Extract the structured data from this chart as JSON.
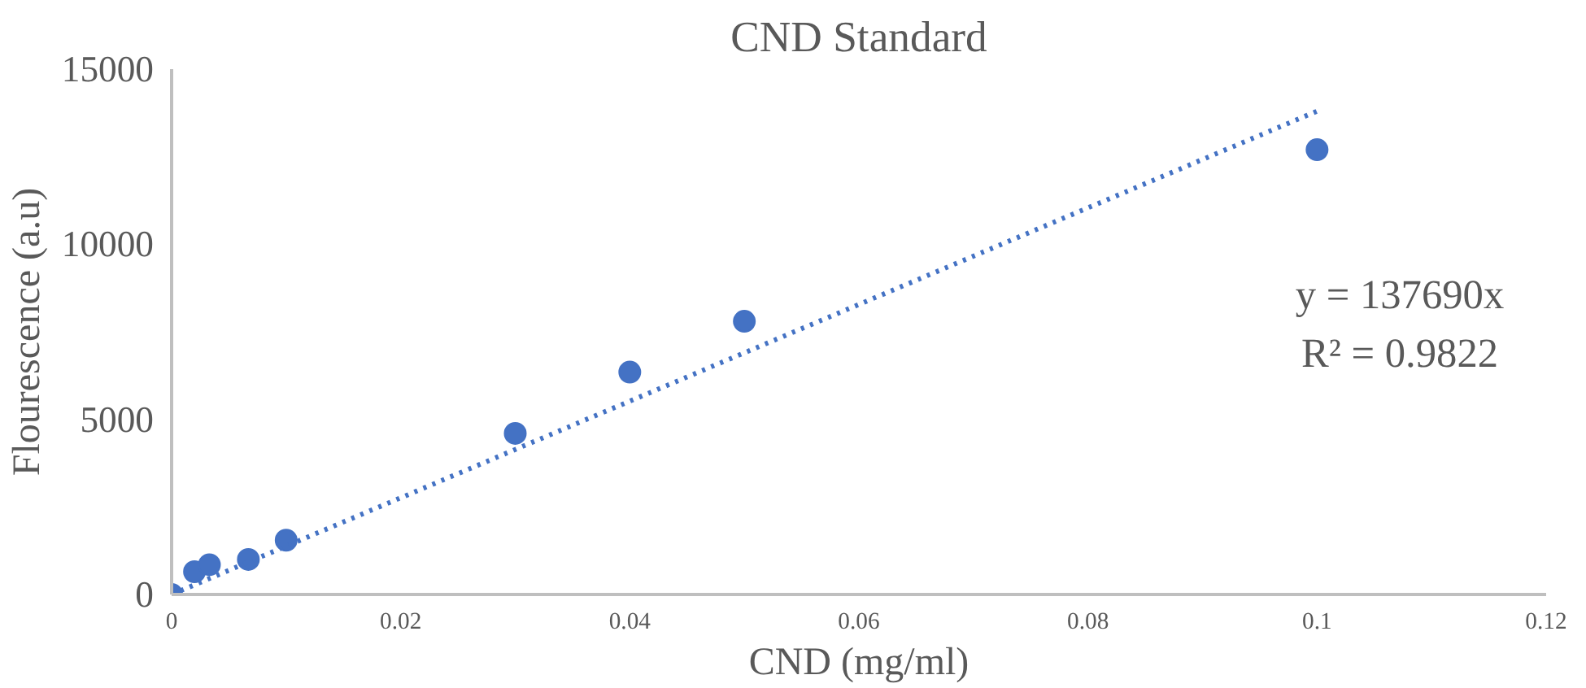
{
  "chart_data": {
    "type": "scatter",
    "title": "CND Standard",
    "xlabel": "CND (mg/ml)",
    "ylabel": "Flourescence (a.u)",
    "xlim": [
      0,
      0.12
    ],
    "xticks": [
      0,
      0.02,
      0.04,
      0.06,
      0.08,
      0.1,
      0.12
    ],
    "ylim": [
      0,
      15000
    ],
    "yticks": [
      0,
      5000,
      10000,
      15000
    ],
    "grid": false,
    "series": [
      {
        "color": "#4472c4",
        "marker": "circle",
        "x": [
          0,
          0.002,
          0.0033,
          0.0067,
          0.01,
          0.03,
          0.04,
          0.05,
          0.1
        ],
        "values": [
          0,
          650,
          850,
          1000,
          1550,
          4600,
          6350,
          7800,
          12700
        ]
      },
      {
        "type": "line",
        "color": "#4472c4",
        "line_style": "dotted",
        "x": [
          0,
          0.1
        ],
        "values": [
          0,
          13800
        ]
      }
    ],
    "annotations": [
      "y = 137690x",
      "R² = 0.9822"
    ]
  }
}
